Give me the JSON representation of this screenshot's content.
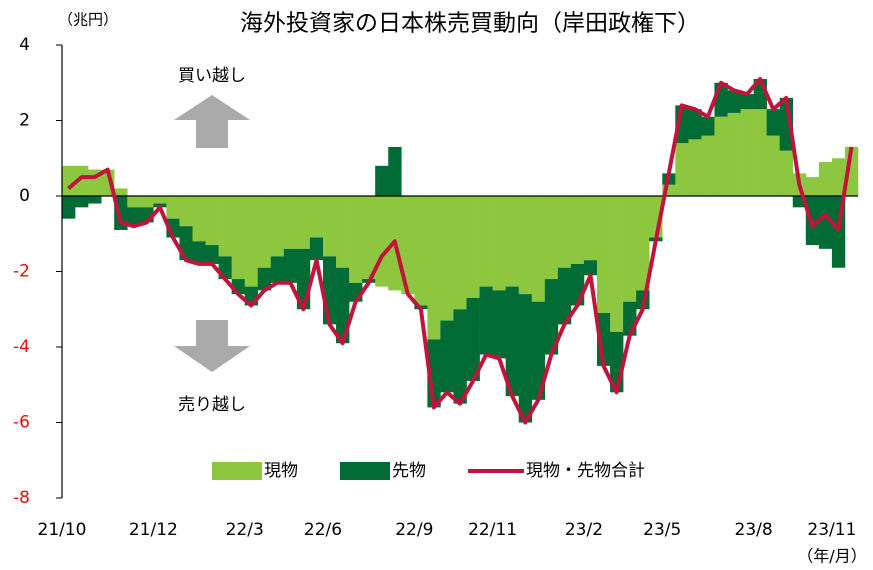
{
  "chart_data": {
    "type": "stacked_bar_line",
    "title": "海外投資家の日本株売買動向（岸田政権下）",
    "y_unit": "（兆円）",
    "x_unit": "（年/月）",
    "annotations": [
      "買い越し",
      "売り越し"
    ],
    "categories": [
      "21/10",
      null,
      null,
      null,
      null,
      null,
      null,
      "21/12",
      null,
      null,
      null,
      null,
      null,
      null,
      "22/3",
      null,
      null,
      null,
      null,
      null,
      "22/6",
      null,
      null,
      null,
      null,
      null,
      null,
      "22/9",
      null,
      null,
      null,
      null,
      null,
      "22/11",
      null,
      null,
      null,
      null,
      null,
      null,
      "23/2",
      null,
      null,
      null,
      null,
      null,
      "23/5",
      null,
      null,
      null,
      null,
      null,
      null,
      "23/8",
      null,
      null,
      null,
      null,
      null,
      "23/11",
      null
    ],
    "series": [
      {
        "name": "現物",
        "color": "#8dc63f",
        "kind": "bar",
        "values": [
          0.8,
          0.8,
          0.7,
          0.7,
          0.2,
          -0.3,
          -0.3,
          -0.2,
          -0.6,
          -0.8,
          -1.2,
          -1.3,
          -1.6,
          -2.2,
          -2.4,
          -1.9,
          -1.6,
          -1.4,
          -1.4,
          -1.1,
          -1.6,
          -1.9,
          -2.3,
          -2.2,
          -2.4,
          -2.5,
          -2.6,
          -2.9,
          -3.8,
          -3.3,
          -3.0,
          -2.7,
          -2.4,
          -2.5,
          -2.4,
          -2.6,
          -2.8,
          -2.2,
          -1.9,
          -1.8,
          -1.7,
          -3.1,
          -3.6,
          -2.8,
          -2.5,
          -1.1,
          0.3,
          1.4,
          1.5,
          1.6,
          2.1,
          2.2,
          2.3,
          2.3,
          1.6,
          1.2,
          0.6,
          0.5,
          0.9,
          1.0,
          1.3
        ]
      },
      {
        "name": "先物",
        "color": "#006b35",
        "kind": "bar",
        "values": [
          -0.6,
          -0.3,
          -0.2,
          0,
          -0.9,
          -0.5,
          -0.4,
          -0.1,
          -0.5,
          -0.9,
          -0.6,
          -0.5,
          -0.6,
          -0.4,
          -0.5,
          -0.6,
          -0.7,
          -0.9,
          -1.6,
          -0.6,
          -1.8,
          -2.0,
          -0.5,
          -0.1,
          0.8,
          1.3,
          0,
          -0.1,
          -1.8,
          -1.9,
          -2.5,
          -2.2,
          -1.8,
          -1.8,
          -2.9,
          -3.4,
          -2.6,
          -2.0,
          -1.5,
          -1.1,
          -0.4,
          -1.4,
          -1.6,
          -0.9,
          -0.5,
          -0.1,
          0.3,
          1.0,
          0.8,
          0.5,
          0.9,
          0.6,
          0.4,
          0.8,
          0.7,
          1.4,
          -0.3,
          -1.3,
          -1.4,
          -1.9,
          0
        ]
      },
      {
        "name": "現物・先物合計",
        "color": "#c0143c",
        "kind": "line",
        "values": [
          0.2,
          0.5,
          0.5,
          0.7,
          -0.7,
          -0.8,
          -0.7,
          -0.3,
          -1.1,
          -1.7,
          -1.8,
          -1.8,
          -2.2,
          -2.6,
          -2.9,
          -2.5,
          -2.3,
          -2.3,
          -3.0,
          -1.7,
          -3.4,
          -3.9,
          -2.8,
          -2.3,
          -1.6,
          -1.2,
          -2.6,
          -3.0,
          -5.6,
          -5.2,
          -5.5,
          -4.9,
          -4.2,
          -4.3,
          -5.3,
          -6.0,
          -5.4,
          -4.2,
          -3.4,
          -2.9,
          -2.1,
          -4.5,
          -5.2,
          -3.7,
          -3.0,
          -1.2,
          0.6,
          2.4,
          2.3,
          2.1,
          3.0,
          2.8,
          2.7,
          3.1,
          2.3,
          2.6,
          0.3,
          -0.8,
          -0.5,
          -0.9,
          1.3
        ]
      }
    ],
    "ylim": [
      -8,
      4
    ],
    "yticks": [
      -8,
      -6,
      -4,
      -2,
      0,
      2,
      4
    ]
  }
}
